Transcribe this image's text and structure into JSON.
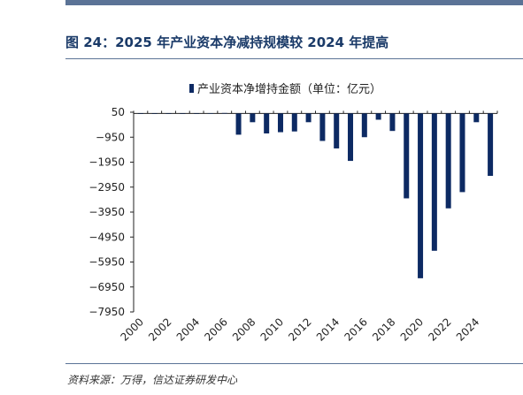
{
  "figure": {
    "title": "图 24：2025 年产业资本净减持规模较 2024 年提高",
    "source": "资料来源：万得，信达证券研发中心"
  },
  "chart_data": {
    "type": "bar",
    "title": "",
    "xlabel": "",
    "ylabel": "",
    "legend": {
      "position": "top-center",
      "entries": [
        "产业资本净增持金额（单位：亿元）"
      ]
    },
    "series": [
      {
        "name": "产业资本净增持金额（单位：亿元）",
        "color": "#0d2a63",
        "values": [
          0,
          0,
          0,
          0,
          0,
          10,
          20,
          -850,
          -350,
          -800,
          -750,
          -720,
          -350,
          -1100,
          -1400,
          -1900,
          -950,
          -250,
          -700,
          -3400,
          -6600,
          -5500,
          -3800,
          -3150,
          -350,
          -2500
        ]
      }
    ],
    "categories": [
      "2000",
      "2001",
      "2002",
      "2003",
      "2004",
      "2005",
      "2006",
      "2007",
      "2008",
      "2009",
      "2010",
      "2011",
      "2012",
      "2013",
      "2014",
      "2015",
      "2016",
      "2017",
      "2018",
      "2019",
      "2020",
      "2021",
      "2022",
      "2023",
      "2024",
      "2025"
    ],
    "xtick_labels": [
      "2000",
      "2002",
      "2004",
      "2006",
      "2008",
      "2010",
      "2012",
      "2014",
      "2016",
      "2018",
      "2020",
      "2022",
      "2024"
    ],
    "yticks": [
      50,
      -950,
      -1950,
      -2950,
      -3950,
      -4950,
      -5950,
      -6950,
      -7950
    ],
    "ylim": [
      -7950,
      50
    ],
    "grid": false
  }
}
